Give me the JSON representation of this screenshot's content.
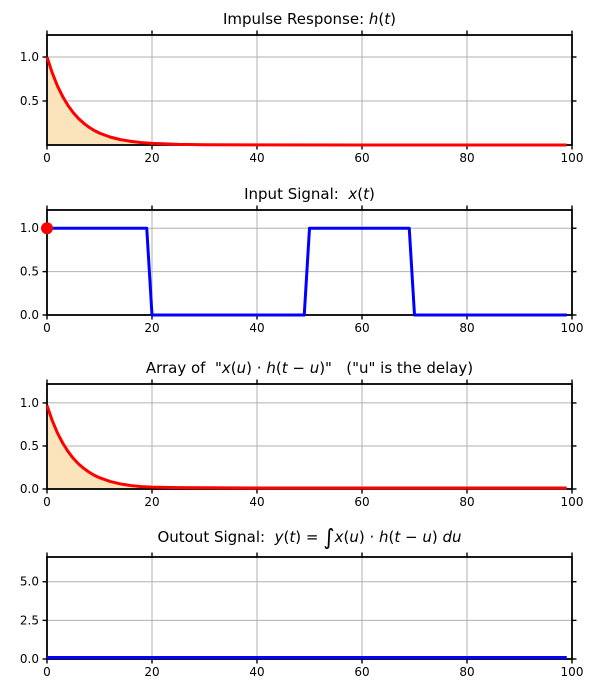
{
  "figure": {
    "background": "#ffffff"
  },
  "style": {
    "frame_color": "#000000",
    "grid_color": "#b0b0b0",
    "tick_color": "#000000",
    "text_color": "#000000",
    "area_fill_color": "#fbe4bb",
    "signal_red": "#ff0000",
    "signal_blue": "#0000ff",
    "marker_red": "#ff0000"
  },
  "chart_data": [
    {
      "id": "impulse-response",
      "type": "line",
      "title_plain": "Impulse Response: h(t)",
      "title_segments": [
        {
          "t": "Impulse Response: "
        },
        {
          "t": "h",
          "i": 1
        },
        {
          "t": "("
        },
        {
          "t": "t",
          "i": 1
        },
        {
          "t": ")"
        }
      ],
      "xlim": [
        0,
        100
      ],
      "ylim": [
        0,
        1.25
      ],
      "xticks": [
        0,
        20,
        40,
        60,
        80,
        100
      ],
      "xtick_labels": [
        "0",
        "20",
        "40",
        "60",
        "80",
        "100"
      ],
      "yticks": [
        0.5,
        1.0
      ],
      "ytick_labels": [
        "0.5",
        "1.0"
      ],
      "grid": true,
      "series": [
        {
          "name": "h(t) = exp(-t/5)",
          "color": "#ff0000",
          "linewidth": 3,
          "fill": "#fbe4bb",
          "fill_to": 0,
          "x": [
            0,
            1,
            2,
            3,
            4,
            5,
            6,
            7,
            8,
            9,
            10,
            12,
            14,
            16,
            18,
            20,
            25,
            30,
            40,
            60,
            99
          ],
          "y": [
            1.0,
            0.819,
            0.67,
            0.549,
            0.449,
            0.368,
            0.301,
            0.247,
            0.202,
            0.165,
            0.135,
            0.091,
            0.061,
            0.041,
            0.027,
            0.018,
            0.007,
            0.003,
            0.001,
            0.0005,
            0.0005
          ]
        }
      ],
      "markers": []
    },
    {
      "id": "input-signal",
      "type": "line",
      "title_plain": "Input Signal:  x(t)",
      "title_segments": [
        {
          "t": "Input Signal:  "
        },
        {
          "t": "x",
          "i": 1
        },
        {
          "t": "("
        },
        {
          "t": "t",
          "i": 1
        },
        {
          "t": ")"
        }
      ],
      "xlim": [
        0,
        100
      ],
      "ylim": [
        0,
        1.21
      ],
      "xticks": [
        0,
        20,
        40,
        60,
        80,
        100
      ],
      "xtick_labels": [
        "0",
        "20",
        "40",
        "60",
        "80",
        "100"
      ],
      "yticks": [
        0.0,
        0.5,
        1.0
      ],
      "ytick_labels": [
        "0.0",
        "0.5",
        "1.0"
      ],
      "grid": true,
      "series": [
        {
          "name": "x(t) pulse train",
          "color": "#0000ff",
          "linewidth": 3,
          "x": [
            0,
            19,
            20,
            49,
            50,
            69,
            70,
            99
          ],
          "y": [
            1,
            1,
            0,
            0,
            1,
            1,
            0,
            0
          ]
        }
      ],
      "markers": [
        {
          "x": 0,
          "y": 1,
          "r": 6,
          "color": "#ff0000"
        }
      ]
    },
    {
      "id": "product-array",
      "type": "line",
      "title_plain": "Array of  \"x(u) · h(t − u)\"   (\"u\" is the delay)",
      "title_segments": [
        {
          "t": "Array of  \""
        },
        {
          "t": "x",
          "i": 1
        },
        {
          "t": "("
        },
        {
          "t": "u",
          "i": 1
        },
        {
          "t": ") · "
        },
        {
          "t": "h",
          "i": 1
        },
        {
          "t": "("
        },
        {
          "t": "t",
          "i": 1
        },
        {
          "t": " − "
        },
        {
          "t": "u",
          "i": 1
        },
        {
          "t": ")\"   (\"u\" is the delay)"
        }
      ],
      "xlim": [
        0,
        100
      ],
      "ylim": [
        0,
        1.22
      ],
      "xticks": [
        0,
        20,
        40,
        60,
        80,
        100
      ],
      "xtick_labels": [
        "0",
        "20",
        "40",
        "60",
        "80",
        "100"
      ],
      "yticks": [
        0.0,
        0.5,
        1.0
      ],
      "ytick_labels": [
        "0.0",
        "0.5",
        "1.0"
      ],
      "grid": true,
      "series": [
        {
          "name": "x(u)·h(t−u)",
          "color": "#ff0000",
          "linewidth": 3,
          "fill": "#fbe4bb",
          "fill_to": 0,
          "x": [
            0,
            1,
            2,
            3,
            4,
            5,
            6,
            7,
            8,
            9,
            10,
            12,
            14,
            16,
            18,
            20,
            25,
            30,
            40,
            60,
            99
          ],
          "y": [
            0.97,
            0.795,
            0.65,
            0.533,
            0.436,
            0.357,
            0.292,
            0.24,
            0.196,
            0.16,
            0.131,
            0.088,
            0.059,
            0.04,
            0.028,
            0.022,
            0.016,
            0.014,
            0.012,
            0.012,
            0.012
          ]
        }
      ],
      "markers": []
    },
    {
      "id": "output-signal",
      "type": "line",
      "title_plain": "Outout Signal:  y(t) = ∫x(u) · h(t − u) du",
      "title_segments": [
        {
          "t": "Outout Signal:  "
        },
        {
          "t": "y",
          "i": 1
        },
        {
          "t": "("
        },
        {
          "t": "t",
          "i": 1
        },
        {
          "t": ") = "
        },
        {
          "t": "∫",
          "big": 1
        },
        {
          "t": "x",
          "i": 1
        },
        {
          "t": "("
        },
        {
          "t": "u",
          "i": 1
        },
        {
          "t": ") · "
        },
        {
          "t": "h",
          "i": 1
        },
        {
          "t": "("
        },
        {
          "t": "t",
          "i": 1
        },
        {
          "t": " − "
        },
        {
          "t": "u",
          "i": 1
        },
        {
          "t": ") "
        },
        {
          "t": "du",
          "i": 1
        }
      ],
      "xlim": [
        0,
        100
      ],
      "ylim": [
        0,
        6.6
      ],
      "xticks": [
        0,
        20,
        40,
        60,
        80,
        100
      ],
      "xtick_labels": [
        "0",
        "20",
        "40",
        "60",
        "80",
        "100"
      ],
      "yticks": [
        0.0,
        2.5,
        5.0
      ],
      "ytick_labels": [
        "0.0",
        "2.5",
        "5.0"
      ],
      "grid": true,
      "series": [
        {
          "name": "y(t)",
          "color": "#0000ff",
          "linewidth": 3,
          "x": [
            0,
            99
          ],
          "y": [
            0.1,
            0.1
          ]
        }
      ],
      "markers": []
    }
  ]
}
